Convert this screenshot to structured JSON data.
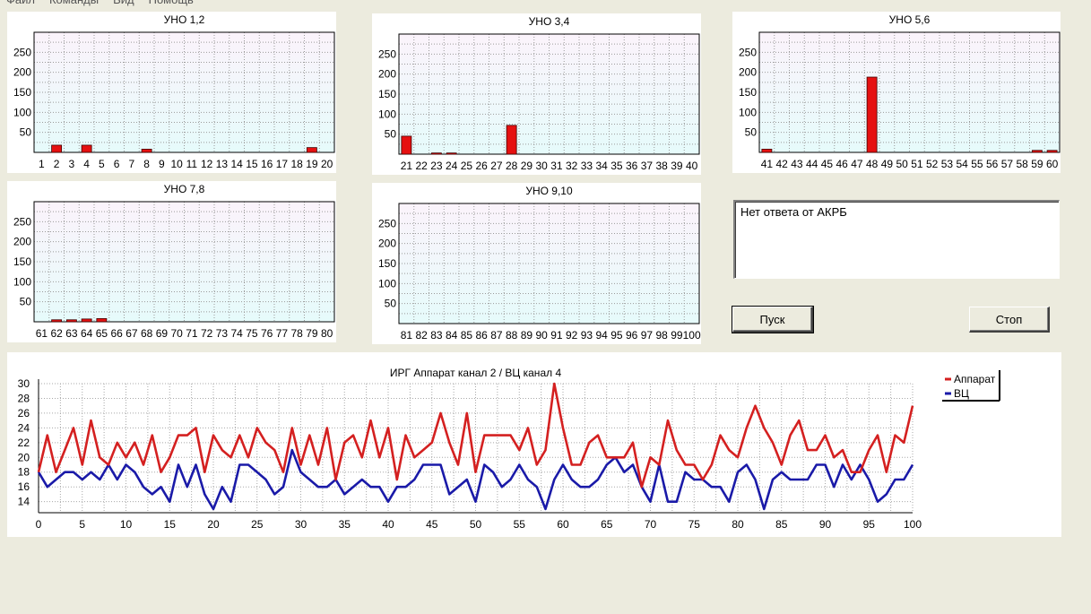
{
  "menu": [
    "Файл",
    "Команды",
    "Вид",
    "Помощь"
  ],
  "bar_y_ticks": [
    50,
    100,
    150,
    200,
    250
  ],
  "bar_ylim": [
    0,
    300
  ],
  "status_text": "Нет ответа от АКРБ",
  "buttons": {
    "start": "Пуск",
    "stop": "Стоп"
  },
  "colors": {
    "bar": "#e51010",
    "line1": "#d42020",
    "line2": "#1a1aa8",
    "plot_bg_top": "#fbf3fb",
    "plot_bg_bottom": "#e6fbfb"
  },
  "chart_data": [
    {
      "type": "bar",
      "title": "УНО 1,2",
      "categories": [
        "1",
        "2",
        "3",
        "4",
        "5",
        "6",
        "7",
        "8",
        "9",
        "10",
        "11",
        "12",
        "13",
        "14",
        "15",
        "16",
        "17",
        "18",
        "19",
        "20"
      ],
      "values": [
        0,
        18,
        0,
        18,
        0,
        0,
        0,
        8,
        0,
        0,
        0,
        0,
        0,
        0,
        0,
        0,
        0,
        0,
        12,
        0
      ],
      "ylim": [
        0,
        300
      ]
    },
    {
      "type": "bar",
      "title": "УНО 3,4",
      "categories": [
        "21",
        "22",
        "23",
        "24",
        "25",
        "26",
        "27",
        "28",
        "29",
        "30",
        "31",
        "32",
        "33",
        "34",
        "35",
        "36",
        "37",
        "38",
        "39",
        "40"
      ],
      "values": [
        45,
        0,
        3,
        3,
        0,
        0,
        0,
        72,
        0,
        0,
        0,
        0,
        0,
        0,
        0,
        0,
        0,
        0,
        0,
        0
      ],
      "ylim": [
        0,
        300
      ]
    },
    {
      "type": "bar",
      "title": "УНО 5,6",
      "categories": [
        "41",
        "42",
        "43",
        "44",
        "45",
        "46",
        "47",
        "48",
        "49",
        "50",
        "51",
        "52",
        "53",
        "54",
        "55",
        "56",
        "57",
        "58",
        "59",
        "60"
      ],
      "values": [
        8,
        0,
        0,
        0,
        0,
        0,
        0,
        188,
        0,
        0,
        0,
        0,
        0,
        0,
        0,
        0,
        0,
        0,
        5,
        5
      ],
      "ylim": [
        0,
        300
      ]
    },
    {
      "type": "bar",
      "title": "УНО 7,8",
      "categories": [
        "61",
        "62",
        "63",
        "64",
        "65",
        "66",
        "67",
        "68",
        "69",
        "70",
        "71",
        "72",
        "73",
        "74",
        "75",
        "76",
        "77",
        "78",
        "79",
        "80"
      ],
      "values": [
        0,
        5,
        5,
        7,
        8,
        0,
        0,
        0,
        0,
        0,
        0,
        0,
        0,
        0,
        0,
        0,
        0,
        0,
        0,
        0
      ],
      "ylim": [
        0,
        300
      ]
    },
    {
      "type": "bar",
      "title": "УНО 9,10",
      "categories": [
        "81",
        "82",
        "83",
        "84",
        "85",
        "86",
        "87",
        "88",
        "89",
        "90",
        "91",
        "92",
        "93",
        "94",
        "95",
        "96",
        "97",
        "98",
        "99",
        "100"
      ],
      "values": [
        0,
        0,
        0,
        0,
        0,
        0,
        0,
        0,
        0,
        0,
        0,
        0,
        0,
        0,
        0,
        0,
        0,
        0,
        0,
        0
      ],
      "ylim": [
        0,
        300
      ]
    },
    {
      "type": "line",
      "title": "ИРГ Аппарат канал 2 / ВЦ канал 4",
      "x": {
        "from": 0,
        "to": 100,
        "step": 1
      },
      "xticks": [
        0,
        5,
        10,
        15,
        20,
        25,
        30,
        35,
        40,
        45,
        50,
        55,
        60,
        65,
        70,
        75,
        80,
        85,
        90,
        95,
        100
      ],
      "yticks": [
        14,
        16,
        18,
        20,
        22,
        24,
        26,
        28,
        30
      ],
      "ylim": [
        12.5,
        30
      ],
      "series": [
        {
          "name": "Аппарат",
          "values": [
            18,
            23,
            18,
            21,
            24,
            19,
            25,
            20,
            19,
            22,
            20,
            22,
            19,
            23,
            18,
            20,
            23,
            23,
            24,
            18,
            23,
            21,
            20,
            23,
            20,
            24,
            22,
            21,
            18,
            24,
            19,
            23,
            19,
            24,
            17,
            22,
            23,
            20,
            25,
            20,
            24,
            17,
            23,
            20,
            21,
            22,
            26,
            22,
            19,
            26,
            18,
            23,
            23,
            23,
            23,
            21,
            24,
            19,
            21,
            30,
            24,
            19,
            19,
            22,
            23,
            20,
            20,
            20,
            22,
            16,
            20,
            19,
            25,
            21,
            19,
            19,
            17,
            19,
            23,
            21,
            20,
            24,
            27,
            24,
            22,
            19,
            23,
            25,
            21,
            21,
            23,
            20,
            21,
            18,
            18,
            21,
            23,
            18,
            23,
            22,
            27
          ]
        },
        {
          "name": "ВЦ",
          "values": [
            18,
            16,
            17,
            18,
            18,
            17,
            18,
            17,
            19,
            17,
            19,
            18,
            16,
            15,
            16,
            14,
            19,
            16,
            19,
            15,
            13,
            16,
            14,
            19,
            19,
            18,
            17,
            15,
            16,
            21,
            18,
            17,
            16,
            16,
            17,
            15,
            16,
            17,
            16,
            16,
            14,
            16,
            16,
            17,
            19,
            19,
            19,
            15,
            16,
            17,
            14,
            19,
            18,
            16,
            17,
            19,
            17,
            16,
            13,
            17,
            19,
            17,
            16,
            16,
            17,
            19,
            20,
            18,
            19,
            16,
            14,
            19,
            14,
            14,
            18,
            17,
            17,
            16,
            16,
            14,
            18,
            19,
            17,
            13,
            17,
            18,
            17,
            17,
            17,
            19,
            19,
            16,
            19,
            17,
            19,
            17,
            14,
            15,
            17,
            17,
            19
          ]
        }
      ]
    }
  ]
}
